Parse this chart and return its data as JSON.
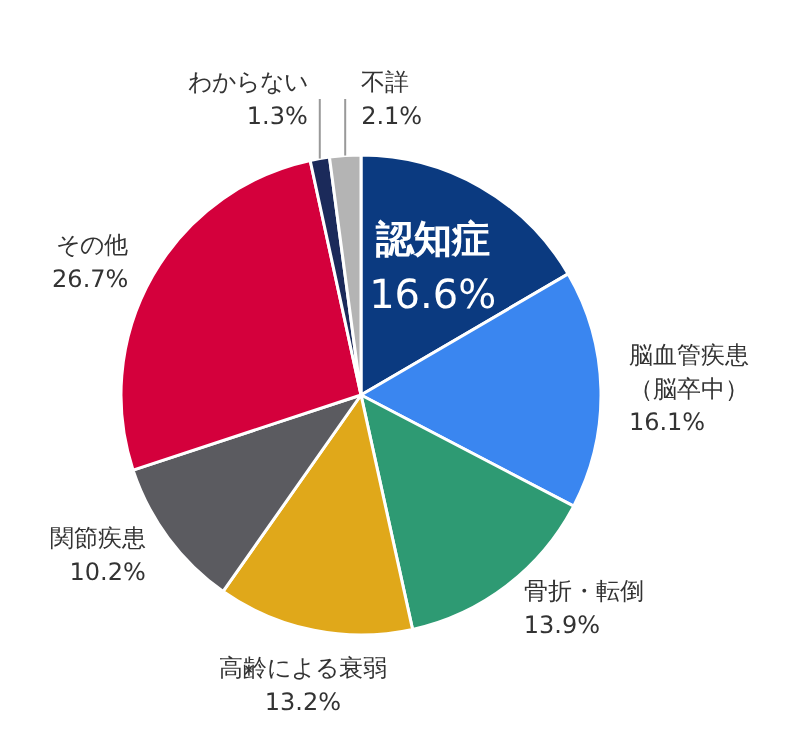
{
  "chart_data": {
    "type": "pie",
    "categories": [
      "認知症",
      "脳血管疾患（脳卒中）",
      "骨折・転倒",
      "高齢による衰弱",
      "関節疾患",
      "その他",
      "わからない",
      "不詳"
    ],
    "values": [
      16.6,
      16.1,
      13.9,
      13.2,
      10.2,
      26.7,
      1.3,
      2.1
    ],
    "colors": [
      "#0b3a80",
      "#3a86f0",
      "#2e9a73",
      "#e0a81a",
      "#5b5b60",
      "#d4003c",
      "#1b2a5a",
      "#b4b4b4"
    ],
    "value_labels": [
      "16.6%",
      "16.1%",
      "13.9%",
      "13.2%",
      "10.2%",
      "26.7%",
      "1.3%",
      "2.1%"
    ]
  }
}
